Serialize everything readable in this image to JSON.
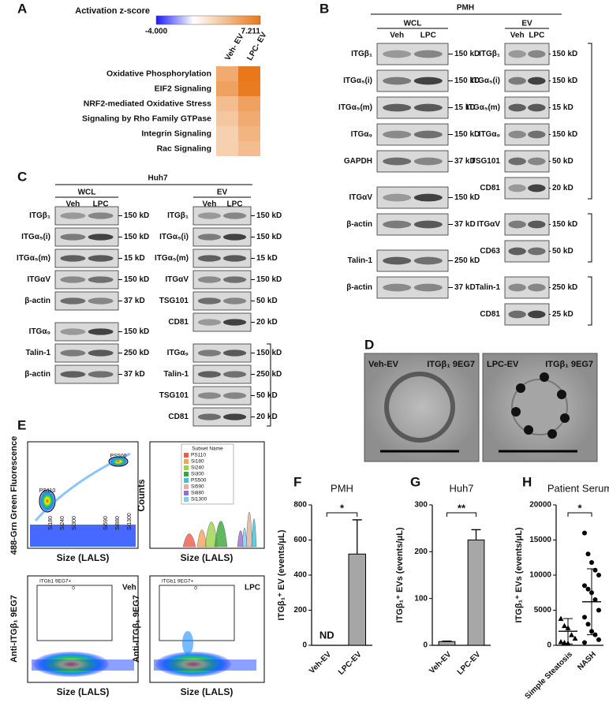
{
  "panel_labels": [
    "A",
    "B",
    "C",
    "D",
    "E",
    "F",
    "G",
    "H"
  ],
  "chart_data": [
    {
      "type": "heatmap",
      "title": "Activation z-score",
      "x": [
        "Veh- EV",
        "LPC- EV"
      ],
      "y": [
        "Oxidative Phosphorylation",
        "EIF2 Signaling",
        "NRF2-mediated Oxidative Stress",
        "Signaling by Rho Family GTPase",
        "Integrin Signaling",
        "Rac Signaling"
      ],
      "values": [
        [
          4.5,
          7.2
        ],
        [
          5,
          7
        ],
        [
          3.5,
          5
        ],
        [
          3,
          4.5
        ],
        [
          2.5,
          4
        ],
        [
          2.5,
          3.5
        ]
      ],
      "zlim": [
        {
          "value": -4,
          "label": "-4.000"
        },
        7.211
      ],
      "colors": [
        "#1a1aff",
        "#ffffff",
        "#e8781a"
      ]
    },
    {
      "type": "bar",
      "title": "PMH",
      "y_label": "ITGβ₁⁺ EV (events/μL)",
      "categories": [
        "Veh-EV",
        "LPC-EV"
      ],
      "values": [
        null,
        520
      ],
      "value_labels": [
        "ND",
        null
      ],
      "errors": [
        null,
        195
      ],
      "ylim": [
        0,
        800
      ],
      "yticks": [
        0,
        200,
        400,
        600,
        800
      ],
      "color": "#a6a6a6",
      "significance": "*"
    },
    {
      "type": "bar",
      "title": "Huh7",
      "y_label": "ITGβ₁⁺ EVs (events/μL)",
      "categories": [
        "Veh-EV",
        "LPC-EV"
      ],
      "values": [
        8,
        225
      ],
      "errors": [
        1,
        22
      ],
      "ylim": [
        0,
        300
      ],
      "yticks": [
        0,
        100,
        200,
        300
      ],
      "color": "#a6a6a6",
      "significance": "**"
    },
    {
      "type": "dot",
      "title": "Patient Serum",
      "y_label": "ITGβ₁⁺ EVs (events/μL)",
      "categories": [
        "Simple Steatosis",
        "NASH"
      ],
      "values": [
        2000,
        6200
      ],
      "errors": [
        1800,
        4700
      ],
      "points": [
        [
          3800,
          2800,
          2500,
          1500,
          1000,
          500,
          400,
          300
        ],
        [
          16000,
          13000,
          11800,
          10700,
          10000,
          8500,
          8000,
          7500,
          6500,
          5000,
          4000,
          3000,
          2000,
          1500,
          800,
          400
        ]
      ],
      "ylim": [
        0,
        20000
      ],
      "yticks": [
        0,
        5000,
        10000,
        15000,
        20000
      ],
      "color": "#000000",
      "significance": "*"
    }
  ],
  "blots": {
    "B": {
      "title": "PMH",
      "groups": [
        {
          "title": "WCL",
          "lanes": [
            "Veh",
            "LPC"
          ],
          "rows": [
            {
              "label": "ITGβ₁",
              "size": "150 kD"
            },
            {
              "label": "ITGα₅(i)",
              "size": "150 kD"
            },
            {
              "label": "ITGα₅(m)",
              "size": "15 kD"
            },
            {
              "label": "ITGα₉",
              "size": "150 kD"
            },
            {
              "label": "GAPDH",
              "size": "37 kD"
            },
            {
              "label": "ITGαV",
              "size": "150 kD"
            },
            {
              "label": "β-actin",
              "size": "37 kD"
            },
            {
              "label": "Talin-1",
              "size": "250 kD"
            },
            {
              "label": "β-actin",
              "size": "37 kD"
            }
          ]
        },
        {
          "title": "EV",
          "lanes": [
            "Veh",
            "LPC"
          ],
          "rows": [
            {
              "label": "ITGβ₁",
              "size": "150 kD"
            },
            {
              "label": "ITGα₅(i)",
              "size": "150 kD"
            },
            {
              "label": "ITGα₅(m)",
              "size": "15 kD"
            },
            {
              "label": "ITGα₉",
              "size": "150 kD"
            },
            {
              "label": "TSG101",
              "size": "50 kD"
            },
            {
              "label": "CD81",
              "size": "20 kD"
            },
            {
              "label": "ITGαV",
              "size": "150 kD"
            },
            {
              "label": "CD63",
              "size": "50 kD"
            },
            {
              "label": "Talin-1",
              "size": "250 kD"
            },
            {
              "label": "CD81",
              "size": "25 kD"
            }
          ]
        }
      ]
    },
    "C": {
      "title": "Huh7",
      "groups": [
        {
          "title": "WCL",
          "lanes": [
            "Veh",
            "LPC"
          ],
          "rows": [
            {
              "label": "ITGβ₁",
              "size": "150 kD"
            },
            {
              "label": "ITGα₅(i)",
              "size": "150 kD"
            },
            {
              "label": "ITGα₅(m)",
              "size": "15 kD"
            },
            {
              "label": "ITGαV",
              "size": "150 kD"
            },
            {
              "label": "β-actin",
              "size": "37 kD"
            },
            {
              "label": "ITGα₉",
              "size": "150 kD"
            },
            {
              "label": "Talin-1",
              "size": "250 kD"
            },
            {
              "label": "β-actin",
              "size": "37 kD"
            }
          ]
        },
        {
          "title": "EV",
          "lanes": [
            "Veh",
            "LPC"
          ],
          "rows": [
            {
              "label": "ITGβ₁",
              "size": "150 kD"
            },
            {
              "label": "ITGα₅(i)",
              "size": "150 kD"
            },
            {
              "label": "ITGα₅(m)",
              "size": "15 kD"
            },
            {
              "label": "ITGαV",
              "size": "150 kD"
            },
            {
              "label": "TSG101",
              "size": "50 kD"
            },
            {
              "label": "CD81",
              "size": "20 kD"
            },
            {
              "label": "ITGα₉",
              "size": "150 kD"
            },
            {
              "label": "Talin-1",
              "size": "250 kD"
            },
            {
              "label": "TSG101",
              "size": "50 kD"
            },
            {
              "label": "CD81",
              "size": "20 kD"
            }
          ]
        }
      ]
    }
  },
  "em": [
    {
      "group": "Veh-EV",
      "stain": "ITGβ₁ 9EG7"
    },
    {
      "group": "LPC-EV",
      "stain": "ITGβ₁ 9EG7"
    }
  ],
  "flow": {
    "fluor_label": "488-Grn Green Fluorescence",
    "size_label": "Size (LALS)",
    "counts_label": "Counts",
    "bead_labels": [
      "PS500",
      "PS110",
      "Si180",
      "Si240",
      "Si300",
      "Si590",
      "Si880",
      "Si1300"
    ],
    "legend_title": "Subset Name",
    "subsets": [
      "PS110",
      "Si180",
      "Si240",
      "Si300",
      "PS500",
      "Si590",
      "Si880",
      "Si1300"
    ],
    "marker_label": "Anti-ITGβ₁ 9EG7",
    "gate_label": "ITGb1 9EG7+",
    "gate_count": "0",
    "conditions": [
      "Veh",
      "LPC"
    ]
  }
}
